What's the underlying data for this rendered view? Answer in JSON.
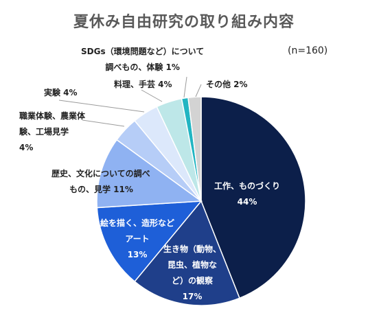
{
  "chart_data": {
    "type": "pie",
    "title": "夏休み自由研究の取り組み内容",
    "note": "(n=160)",
    "slices": [
      {
        "label": "工作、ものづくり",
        "value": 44,
        "value_label": "44%",
        "color": "#0c1f4a"
      },
      {
        "label": "生き物（動物、昆虫、植物など）の観察",
        "value": 17,
        "value_label": "17%",
        "color": "#1f3f8a"
      },
      {
        "label": "絵を描く、造形などアート",
        "value": 13,
        "value_label": "13%",
        "color": "#1e5fd8"
      },
      {
        "label": "歴史、文化についての調べもの、見学",
        "value": 11,
        "value_label": "11%",
        "color": "#8fb2f2"
      },
      {
        "label": "職業体験、農業体験、工場見学",
        "value": 4,
        "value_label": "4%",
        "color": "#b6cdf7"
      },
      {
        "label": "実験",
        "value": 4,
        "value_label": "4%",
        "color": "#dce8fb"
      },
      {
        "label": "料理、手芸",
        "value": 4,
        "value_label": "4%",
        "color": "#bde7e8"
      },
      {
        "label": "SDGs（環境問題など）について調べもの、体験",
        "value": 1,
        "value_label": "1%",
        "color": "#22b5c2"
      },
      {
        "label": "その他",
        "value": 2,
        "value_label": "2%",
        "color": "#d3d3d3"
      }
    ]
  },
  "labels": {
    "craft": {
      "line1": "工作、ものづくり",
      "line2": "44%"
    },
    "nature": {
      "line1": "生き物（動物、",
      "line2": "昆虫、植物な",
      "line3": "ど）の観察",
      "line4": "17%"
    },
    "art": {
      "line1": "絵を描く、造形など",
      "line2": "アート",
      "line3": "13%"
    },
    "history": {
      "line1": "歴史、文化についての調べ",
      "line2": "もの、見学 11%"
    },
    "work": {
      "line1": "職業体験、農業体",
      "line2": "験、工場見学",
      "line3": "4%"
    },
    "experiment": {
      "line1": "実験 4%"
    },
    "cooking": {
      "line1": "料理、手芸 4%"
    },
    "sdgs": {
      "line1": "SDGs（環境問題など）について",
      "line2": "調べもの、体験 1%"
    },
    "other": {
      "line1": "その他 2%"
    }
  }
}
